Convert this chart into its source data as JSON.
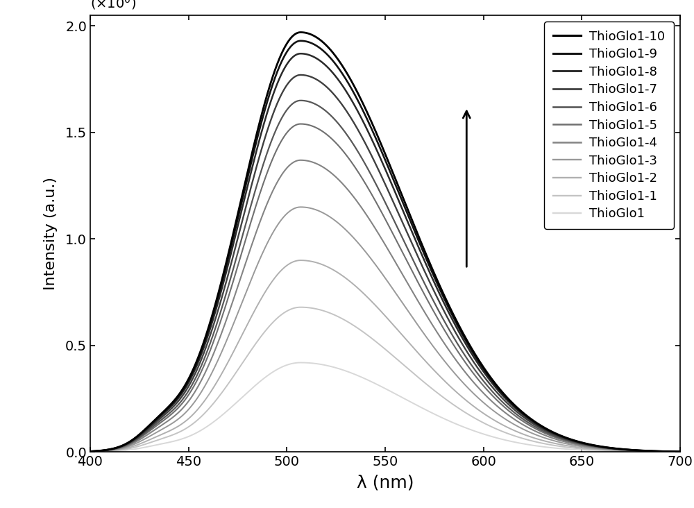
{
  "xlabel": "λ (nm)",
  "ylabel": "Intensity (a.u.)",
  "xlim": [
    400,
    700
  ],
  "ylim": [
    0,
    2050000.0
  ],
  "yticks": [
    0,
    500000.0,
    1000000.0,
    1500000.0,
    2000000.0
  ],
  "ytick_labels": [
    "0.0",
    "0.5",
    "1.0",
    "1.5",
    "2.0"
  ],
  "xticks": [
    400,
    450,
    500,
    550,
    600,
    650,
    700
  ],
  "series": [
    {
      "label": "ThioGlo1",
      "peak": 420000.0,
      "peak_wl": 507,
      "color": "#d8d8d8",
      "lw": 1.4
    },
    {
      "label": "ThioGlo1-1",
      "peak": 680000.0,
      "peak_wl": 507,
      "color": "#c4c4c4",
      "lw": 1.4
    },
    {
      "label": "ThioGlo1-2",
      "peak": 900000.0,
      "peak_wl": 507,
      "color": "#b0b0b0",
      "lw": 1.4
    },
    {
      "label": "ThioGlo1-3",
      "peak": 1150000.0,
      "peak_wl": 507,
      "color": "#999999",
      "lw": 1.4
    },
    {
      "label": "ThioGlo1-4",
      "peak": 1370000.0,
      "peak_wl": 507,
      "color": "#848484",
      "lw": 1.5
    },
    {
      "label": "ThioGlo1-5",
      "peak": 1540000.0,
      "peak_wl": 507,
      "color": "#707070",
      "lw": 1.5
    },
    {
      "label": "ThioGlo1-6",
      "peak": 1650000.0,
      "peak_wl": 507,
      "color": "#585858",
      "lw": 1.6
    },
    {
      "label": "ThioGlo1-7",
      "peak": 1770000.0,
      "peak_wl": 507,
      "color": "#404040",
      "lw": 1.7
    },
    {
      "label": "ThioGlo1-8",
      "peak": 1870000.0,
      "peak_wl": 507,
      "color": "#2a2a2a",
      "lw": 1.8
    },
    {
      "label": "ThioGlo1-9",
      "peak": 1930000.0,
      "peak_wl": 507,
      "color": "#141414",
      "lw": 1.9
    },
    {
      "label": "ThioGlo1-10",
      "peak": 1970000.0,
      "peak_wl": 507,
      "color": "#000000",
      "lw": 2.0
    }
  ],
  "background_color": "#ffffff",
  "fontsize": 16,
  "tick_fontsize": 14,
  "legend_fontsize": 13
}
